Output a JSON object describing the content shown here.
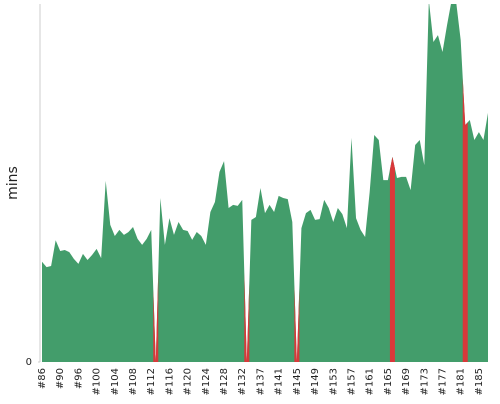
{
  "chart_data": {
    "type": "area",
    "ylabel": "mins",
    "categories": [
      "#86",
      null,
      null,
      null,
      "#90",
      null,
      null,
      null,
      "#96",
      null,
      null,
      null,
      "#100",
      null,
      null,
      null,
      "#104",
      null,
      null,
      null,
      "#108",
      null,
      null,
      null,
      "#112",
      null,
      null,
      null,
      "#116",
      null,
      null,
      null,
      "#120",
      null,
      null,
      null,
      "#124",
      null,
      null,
      null,
      "#128",
      null,
      null,
      null,
      "#132",
      null,
      null,
      null,
      "#137",
      null,
      null,
      null,
      "#141",
      null,
      null,
      null,
      "#145",
      null,
      null,
      null,
      "#149",
      null,
      null,
      null,
      "#153",
      null,
      null,
      null,
      "#157",
      null,
      null,
      null,
      "#161",
      null,
      null,
      null,
      "#165",
      null,
      null,
      null,
      "#169",
      null,
      null,
      null,
      "#173",
      null,
      null,
      null,
      "#177",
      null,
      null,
      null,
      "#181",
      null,
      null,
      null,
      "#185",
      null,
      null
    ],
    "values": [
      28,
      26.5,
      26.8,
      34,
      31,
      31.3,
      30.7,
      28.8,
      27.4,
      30.2,
      28.5,
      29.9,
      31.6,
      29,
      50.6,
      38.3,
      35.2,
      36.9,
      35.5,
      36.3,
      37.7,
      34.4,
      32.7,
      34.4,
      36.9,
      0,
      45.8,
      32.7,
      40.2,
      35.5,
      39.1,
      36.9,
      36.6,
      34.1,
      36.3,
      35.2,
      32.7,
      41.9,
      44.7,
      53.1,
      56.1,
      43,
      43.9,
      43.6,
      45.3,
      0,
      39.7,
      40.5,
      48.6,
      41.6,
      43.9,
      41.9,
      46.4,
      45.8,
      45.5,
      39.1,
      0,
      37.4,
      41.6,
      42.5,
      39.7,
      39.9,
      45.3,
      43,
      39.1,
      43,
      41.3,
      37.4,
      62.6,
      40.2,
      36.9,
      34.9,
      47.5,
      63.4,
      62,
      50.8,
      50.8,
      57.3,
      51.4,
      51.7,
      51.7,
      48,
      60.6,
      62,
      55,
      101,
      89.4,
      91.3,
      86.6,
      94.1,
      101,
      100.6,
      89.9,
      66.2,
      67.6,
      62,
      64.2,
      62,
      69.6
    ],
    "color": "#439d6b",
    "fail_color": "#d9383a",
    "failed": [
      25,
      45,
      56,
      77,
      93
    ],
    "ylim": [
      0,
      100
    ],
    "yticks": [
      0
    ]
  }
}
